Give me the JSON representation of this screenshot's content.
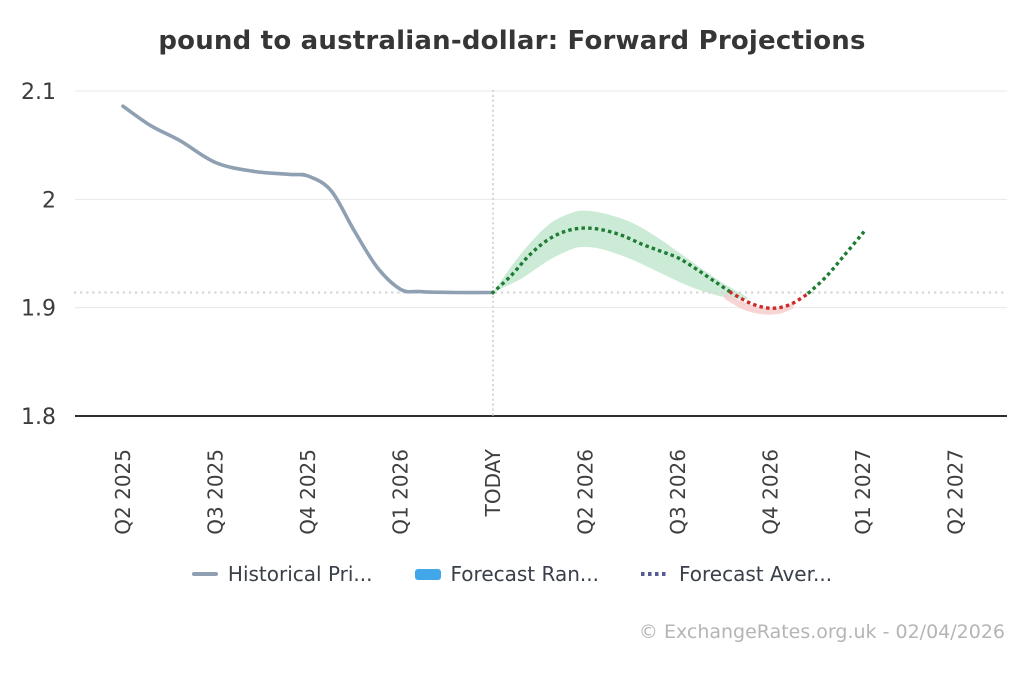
{
  "title": "pound to australian-dollar: Forward Projections",
  "footer": {
    "attribution": "© ExchangeRates.org.uk - 02/04/2026"
  },
  "legend": {
    "items": [
      {
        "label": "Historical Pri...",
        "series": "Historical Price",
        "swatch": "line"
      },
      {
        "label": "Forecast Ran...",
        "series": "Forecast Range",
        "swatch": "rect"
      },
      {
        "label": "Forecast Aver...",
        "series": "Forecast Average",
        "swatch": "dots"
      }
    ]
  },
  "colors": {
    "historical": "#8fa0b3",
    "forecast_range_legend": "#41a7e8",
    "forecast_avg_legend": "#555a8f",
    "forecast_range_fill": "#c3e7d0",
    "forecast_range_fill_negative": "#f7cdcd",
    "forecast_avg_positive": "#1e7c33",
    "forecast_avg_negative": "#cc2b2b",
    "gridline": "#e8e8e8",
    "axis": "#2f2f2f",
    "dotted_reference": "#d7d7d7",
    "text_dark": "#3c3c3c",
    "text_axis": "#3f3f3f"
  },
  "chart_data": {
    "type": "line",
    "title": "pound to australian-dollar: Forward Projections",
    "x_unit": "tick_index",
    "x_tick_labels": [
      "Q2 2025",
      "Q3 2025",
      "Q4 2025",
      "Q1 2026",
      "TODAY",
      "Q2 2026",
      "Q3 2026",
      "Q4 2026",
      "Q1 2027",
      "Q2 2027"
    ],
    "y_ticks": [
      1.8,
      1.9,
      2,
      2.1
    ],
    "y_tick_labels": [
      "1.8",
      "1.9",
      "2",
      "2.1"
    ],
    "ylim": [
      1.8,
      2.1
    ],
    "grid": "horizontal",
    "legend_position": "bottom",
    "today_index": 4,
    "today_value": 1.914,
    "series": [
      {
        "name": "Historical Price",
        "type": "line",
        "points": [
          [
            0,
            2.086
          ],
          [
            0.3,
            2.068
          ],
          [
            0.62,
            2.054
          ],
          [
            1.0,
            2.034
          ],
          [
            1.4,
            2.026
          ],
          [
            1.8,
            2.023
          ],
          [
            2.0,
            2.0215
          ],
          [
            2.25,
            2.008
          ],
          [
            2.5,
            1.971
          ],
          [
            2.75,
            1.937
          ],
          [
            3.0,
            1.917
          ],
          [
            3.2,
            1.9148
          ],
          [
            3.6,
            1.914
          ],
          [
            4.0,
            1.914
          ]
        ]
      },
      {
        "name": "Forecast Average",
        "type": "dotted-line",
        "points": [
          [
            4.0,
            1.914
          ],
          [
            4.2,
            1.93
          ],
          [
            4.4,
            1.949
          ],
          [
            4.6,
            1.963
          ],
          [
            4.8,
            1.971
          ],
          [
            5.0,
            1.9735
          ],
          [
            5.2,
            1.9715
          ],
          [
            5.4,
            1.9665
          ],
          [
            5.6,
            1.959
          ],
          [
            5.8,
            1.9525
          ],
          [
            6.0,
            1.946
          ],
          [
            6.2,
            1.9355
          ],
          [
            6.4,
            1.924
          ],
          [
            6.6,
            1.9125
          ],
          [
            6.8,
            1.9035
          ],
          [
            7.0,
            1.8995
          ],
          [
            7.2,
            1.9025
          ],
          [
            7.4,
            1.9125
          ],
          [
            7.6,
            1.9285
          ],
          [
            7.8,
            1.9485
          ],
          [
            8.0,
            1.969
          ]
        ]
      },
      {
        "name": "Forecast Range",
        "type": "band",
        "upper": [
          [
            4.0,
            1.914
          ],
          [
            4.3,
            1.9495
          ],
          [
            4.6,
            1.9765
          ],
          [
            4.85,
            1.9875
          ],
          [
            5.0,
            1.9895
          ],
          [
            5.2,
            1.987
          ],
          [
            5.5,
            1.9785
          ],
          [
            5.8,
            1.9635
          ],
          [
            6.1,
            1.9455
          ],
          [
            6.4,
            1.9275
          ],
          [
            6.6,
            1.917
          ],
          [
            6.75,
            1.9095
          ]
        ],
        "lower": [
          [
            4.0,
            1.914
          ],
          [
            4.3,
            1.9265
          ],
          [
            4.6,
            1.9435
          ],
          [
            4.85,
            1.954
          ],
          [
            5.0,
            1.956
          ],
          [
            5.2,
            1.9535
          ],
          [
            5.5,
            1.9445
          ],
          [
            5.8,
            1.9325
          ],
          [
            6.1,
            1.9205
          ],
          [
            6.4,
            1.9118
          ],
          [
            6.6,
            1.9085
          ],
          [
            6.75,
            1.9075
          ]
        ]
      },
      {
        "name": "Forecast Range (below today level)",
        "type": "band",
        "upper": [
          [
            6.5,
            1.9135
          ],
          [
            6.7,
            1.9055
          ],
          [
            6.9,
            1.9
          ],
          [
            7.1,
            1.9
          ],
          [
            7.25,
            1.9045
          ]
        ],
        "lower": [
          [
            6.5,
            1.9085
          ],
          [
            6.7,
            1.8985
          ],
          [
            6.9,
            1.894
          ],
          [
            7.1,
            1.8945
          ],
          [
            7.25,
            1.8995
          ]
        ]
      }
    ]
  }
}
